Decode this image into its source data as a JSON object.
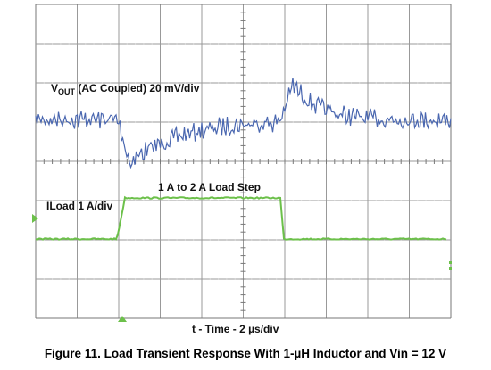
{
  "figure": {
    "vout_label": {
      "main": "V",
      "sub": "OUT",
      "rest": " (AC Coupled) 20 mV/div"
    },
    "step_label": "1 A to 2 A Load Step",
    "iload_label": "ILoad 1 A/div",
    "time_label": "t - Time - 2 µs/div",
    "caption": "Figure 11. Load Transient Response With 1-µH Inductor and Vin = 12 V"
  }
}
